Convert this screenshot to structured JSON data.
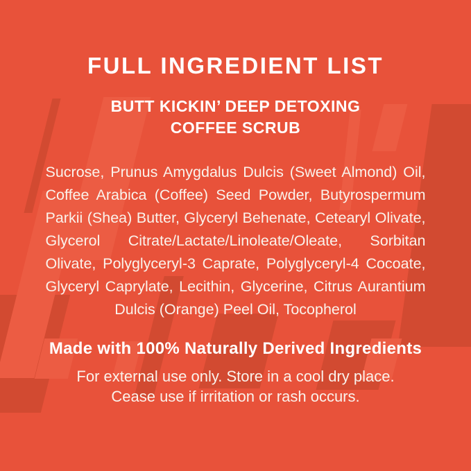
{
  "page": {
    "colors": {
      "background": "#E8523A",
      "pattern_dark": "#D24A31",
      "pattern_light": "#EC5C43",
      "title_text": "#FFFFFF",
      "body_text": "#FAF3EC"
    }
  },
  "header": {
    "title": "FULL INGREDIENT LIST",
    "subtitle_line1": "BUTT KICKIN’ DEEP DETOXING",
    "subtitle_line2": "COFFEE SCRUB"
  },
  "ingredients": {
    "text": "Sucrose, Prunus Amygdalus Dulcis (Sweet Almond) Oil, Coffee Arabica (Coffee) Seed Powder, Butyrospermum Parkii (Shea) Butter, Glyceryl Behenate, Cetearyl Olivate, Glycerol Citrate/Lactate/Linoleate/Oleate, Sorbitan Olivate, Polyglyceryl-3 Caprate, Polyglyceryl-4 Cocoate, Glyceryl Caprylate, Lecithin, Glycerine, Citrus Aurantium Dulcis (Orange) Peel Oil, Tocopherol"
  },
  "footer": {
    "claim": "Made with 100% Naturally Derived Ingredients",
    "usage_line1": "For external use only. Store in a cool dry place.",
    "usage_line2": "Cease use if irritation or rash occurs."
  }
}
